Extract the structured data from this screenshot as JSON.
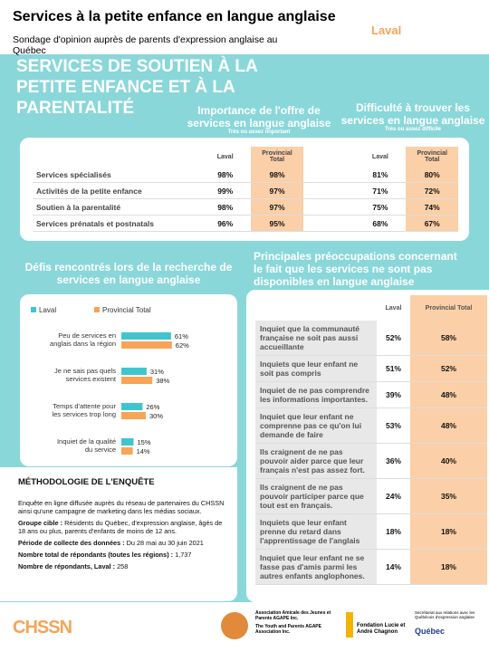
{
  "header": {
    "title": "Services à la petite enfance en langue anglaise",
    "subtitle": "Sondage d'opinion auprès de parents d'expression anglaise au Québec",
    "region": "Laval"
  },
  "banner": "SERVICES DE SOUTIEN À LA PETITE ENFANCE ET À LA PARENTALITÉ",
  "table1": {
    "importance": {
      "title": "Importance de l'offre de services en langue anglaise",
      "note": "Très ou assez important"
    },
    "difficulty": {
      "title": "Difficulté à trouver les services en langue anglaise",
      "note": "Très ou assez difficile"
    },
    "columns": [
      "Laval",
      "Provincial Total",
      "Laval",
      "Provincial Total"
    ],
    "rows": [
      [
        "Services spécialisés",
        "98%",
        "98%",
        "81%",
        "80%"
      ],
      [
        "Activités de la petite enfance",
        "99%",
        "97%",
        "71%",
        "72%"
      ],
      [
        "Soutien à la parentalité",
        "98%",
        "97%",
        "75%",
        "74%"
      ],
      [
        "Services prénatals et postnatals",
        "96%",
        "95%",
        "68%",
        "67%"
      ]
    ]
  },
  "chart_data": {
    "type": "bar",
    "title": "Défis rencontrés lors de la recherche de services en langue anglaise",
    "categories": [
      "Peu de services en anglais dans la région",
      "Je ne sais pas quels services existent",
      "Temps d'attente pour les services trop long",
      "Inquiet de la qualité du service"
    ],
    "series": [
      {
        "name": "Laval",
        "color": "#3fc6cc",
        "values": [
          61,
          31,
          26,
          15
        ],
        "value_labels": [
          "61%",
          "31%",
          "26%",
          "15%"
        ]
      },
      {
        "name": "Provincial Total",
        "color": "#f7a456",
        "values": [
          62,
          38,
          30,
          14
        ],
        "value_labels": [
          "62%",
          "38%",
          "30%",
          "14%"
        ]
      }
    ]
  },
  "table2": {
    "title": "Principales préoccupations concernant le fait que les services ne sont pas disponibles en langue anglaise",
    "columns": [
      "Laval",
      "Provincial Total"
    ],
    "rows": [
      [
        "Inquiet que la communauté française ne soit pas aussi accueillante",
        "52%",
        "58%"
      ],
      [
        "Inquiets que leur enfant ne soit pas compris",
        "51%",
        "52%"
      ],
      [
        "Inquiet de ne pas comprendre les informations importantes.",
        "39%",
        "48%"
      ],
      [
        "Inquiet que leur enfant ne comprenne pas ce qu'on lui demande de faire",
        "53%",
        "48%"
      ],
      [
        "Ils craignent de ne pas pouvoir aider parce que leur français n'est pas assez fort.",
        "36%",
        "40%"
      ],
      [
        "Ils craignent de ne pas pouvoir participer parce que tout est en français.",
        "24%",
        "35%"
      ],
      [
        "Inquiets que leur enfant prenne du retard dans l'apprentissage de l'anglais",
        "18%",
        "18%"
      ],
      [
        "Inquiet que leur enfant ne se fasse pas d'amis parmi les autres enfants anglophones.",
        "14%",
        "18%"
      ]
    ]
  },
  "methodology": {
    "title": "MÉTHODOLOGIE DE L'ENQUÊTE",
    "intro": "Enquête en ligne diffusée auprès du réseau de partenaires du CHSSN ainsi qu'une campagne de marketing dans les médias sociaux.",
    "items": [
      {
        "label": "Groupe cible :",
        "text": "Résidents du Québec, d'expression anglaise, âgés de 18 ans ou plus, parents d'enfants de moins de 12 ans."
      },
      {
        "label": "Période de collecte des données :",
        "text": "Du 28 mai au 30 juin 2021"
      },
      {
        "label": "Nombre total de répondants (toutes les régions) :",
        "text": "1,737"
      },
      {
        "label": "Nombre de répondants, Laval :",
        "text": "258"
      }
    ]
  },
  "footer": {
    "chssn": "CHSSN",
    "agape_fr": "Association Amicale des Jeunes et Parents AGAPE Inc.",
    "agape_en": "The Youth and Parents AGAPE Association Inc.",
    "chagnon": "Fondation Lucie et André Chagnon",
    "secretariat": "Secrétariat aux relations avec les Québécois d'expression anglaise",
    "quebec": "Québec"
  }
}
